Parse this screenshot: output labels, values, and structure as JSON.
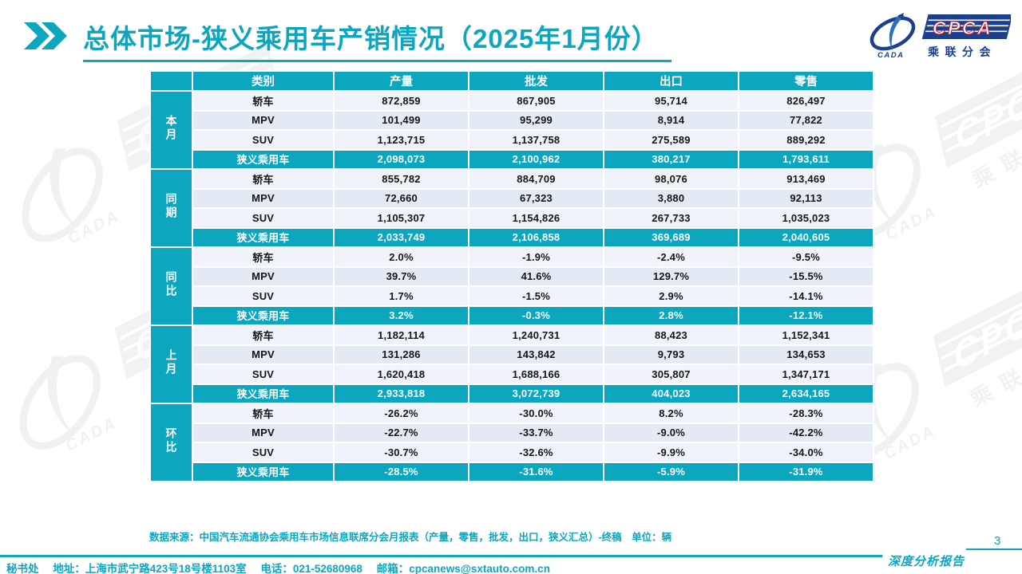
{
  "title": {
    "text": "总体市场-狭义乘用车产销情况（2025年1月份）"
  },
  "logo": {
    "wordmark": "CPCA",
    "subtitle": "乘联分会",
    "ellipse_text": "CADA"
  },
  "colors": {
    "accent_teal": "#0da6bf",
    "logo_navy": "#1c3f90",
    "logo_red": "#c81622",
    "row_light": "#f0f4fa",
    "row_dark": "#e4eaf4"
  },
  "table": {
    "headers": [
      "类别",
      "产量",
      "批发",
      "出口",
      "零售"
    ],
    "groups": [
      {
        "label": "本月",
        "rows": [
          {
            "category": "轿车",
            "summary": false,
            "values": [
              "872,859",
              "867,905",
              "95,714",
              "826,497"
            ]
          },
          {
            "category": "MPV",
            "summary": false,
            "values": [
              "101,499",
              "95,299",
              "8,914",
              "77,822"
            ]
          },
          {
            "category": "SUV",
            "summary": false,
            "values": [
              "1,123,715",
              "1,137,758",
              "275,589",
              "889,292"
            ]
          },
          {
            "category": "狭义乘用车",
            "summary": true,
            "values": [
              "2,098,073",
              "2,100,962",
              "380,217",
              "1,793,611"
            ]
          }
        ]
      },
      {
        "label": "同期",
        "rows": [
          {
            "category": "轿车",
            "summary": false,
            "values": [
              "855,782",
              "884,709",
              "98,076",
              "913,469"
            ]
          },
          {
            "category": "MPV",
            "summary": false,
            "values": [
              "72,660",
              "67,323",
              "3,880",
              "92,113"
            ]
          },
          {
            "category": "SUV",
            "summary": false,
            "values": [
              "1,105,307",
              "1,154,826",
              "267,733",
              "1,035,023"
            ]
          },
          {
            "category": "狭义乘用车",
            "summary": true,
            "values": [
              "2,033,749",
              "2,106,858",
              "369,689",
              "2,040,605"
            ]
          }
        ]
      },
      {
        "label": "同比",
        "rows": [
          {
            "category": "轿车",
            "summary": false,
            "values": [
              "2.0%",
              "-1.9%",
              "-2.4%",
              "-9.5%"
            ]
          },
          {
            "category": "MPV",
            "summary": false,
            "values": [
              "39.7%",
              "41.6%",
              "129.7%",
              "-15.5%"
            ]
          },
          {
            "category": "SUV",
            "summary": false,
            "values": [
              "1.7%",
              "-1.5%",
              "2.9%",
              "-14.1%"
            ]
          },
          {
            "category": "狭义乘用车",
            "summary": true,
            "values": [
              "3.2%",
              "-0.3%",
              "2.8%",
              "-12.1%"
            ]
          }
        ]
      },
      {
        "label": "上月",
        "rows": [
          {
            "category": "轿车",
            "summary": false,
            "values": [
              "1,182,114",
              "1,240,731",
              "88,423",
              "1,152,341"
            ]
          },
          {
            "category": "MPV",
            "summary": false,
            "values": [
              "131,286",
              "143,842",
              "9,793",
              "134,653"
            ]
          },
          {
            "category": "SUV",
            "summary": false,
            "values": [
              "1,620,418",
              "1,688,166",
              "305,807",
              "1,347,171"
            ]
          },
          {
            "category": "狭义乘用车",
            "summary": true,
            "values": [
              "2,933,818",
              "3,072,739",
              "404,023",
              "2,634,165"
            ]
          }
        ]
      },
      {
        "label": "环比",
        "rows": [
          {
            "category": "轿车",
            "summary": false,
            "values": [
              "-26.2%",
              "-30.0%",
              "8.2%",
              "-28.3%"
            ]
          },
          {
            "category": "MPV",
            "summary": false,
            "values": [
              "-22.7%",
              "-33.7%",
              "-9.0%",
              "-42.2%"
            ]
          },
          {
            "category": "SUV",
            "summary": false,
            "values": [
              "-30.7%",
              "-32.6%",
              "-9.9%",
              "-34.0%"
            ]
          },
          {
            "category": "狭义乘用车",
            "summary": true,
            "values": [
              "-28.5%",
              "-31.6%",
              "-5.9%",
              "-31.9%"
            ]
          }
        ]
      }
    ]
  },
  "source_note": "数据来源：中国汽车流通协会乘用车市场信息联席分会月报表（产量，零售，批发，出口，狭义汇总）-终稿　单位：辆",
  "footer": {
    "secretariat": "秘书处",
    "address": "地址：上海市武宁路423号18号楼1103室",
    "phone": "电话：021-52680968",
    "email": "邮箱：cpcanews@sxtauto.com.cn",
    "report_label": "深度分析报告",
    "page_number": "3"
  }
}
